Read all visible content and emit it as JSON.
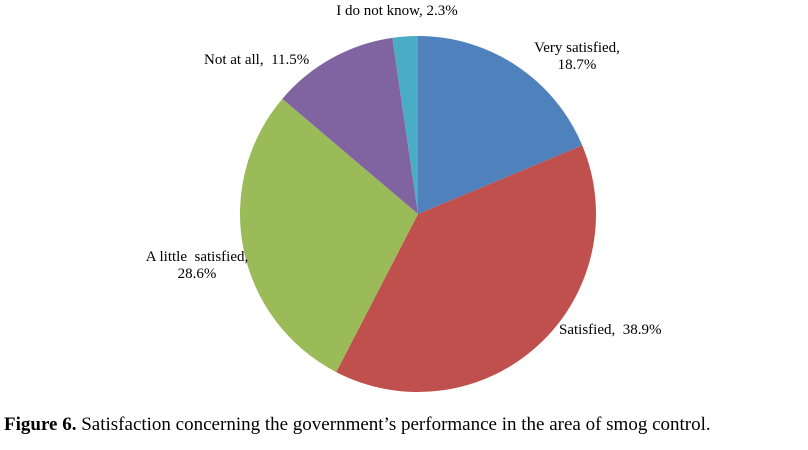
{
  "figure": {
    "caption_label": "Figure 6.",
    "caption_text": "Satisfaction concerning the government’s performance in the area of smog control."
  },
  "chart_data": {
    "type": "pie",
    "title": "",
    "legend_position": "none",
    "labels_position": "outside",
    "start_angle": "12 o'clock, clockwise",
    "categories": [
      "Very satisfied",
      "Satisfied",
      "A little satisfied",
      "Not at all",
      "I do not know"
    ],
    "values": [
      18.7,
      38.9,
      28.6,
      11.5,
      2.3
    ],
    "slices": [
      {
        "id": "very-satisfied",
        "label": "Very satisfied",
        "value": 18.7,
        "color": "#4F81BD",
        "callout": "Very satisfied,\n18.7%"
      },
      {
        "id": "satisfied",
        "label": "Satisfied",
        "value": 38.9,
        "color": "#C0504D",
        "callout": "Satisfied,  38.9%"
      },
      {
        "id": "a-little-satisfied",
        "label": "A little satisfied",
        "value": 28.6,
        "color": "#9BBB59",
        "callout": "A little  satisfied,\n28.6%"
      },
      {
        "id": "not-at-all",
        "label": "Not at all",
        "value": 11.5,
        "color": "#8064A2",
        "callout": "Not at all,  11.5%"
      },
      {
        "id": "i-do-not-know",
        "label": "I do not know",
        "value": 2.3,
        "color": "#4BACC6",
        "callout": "I do not know, 2.3%"
      }
    ]
  }
}
